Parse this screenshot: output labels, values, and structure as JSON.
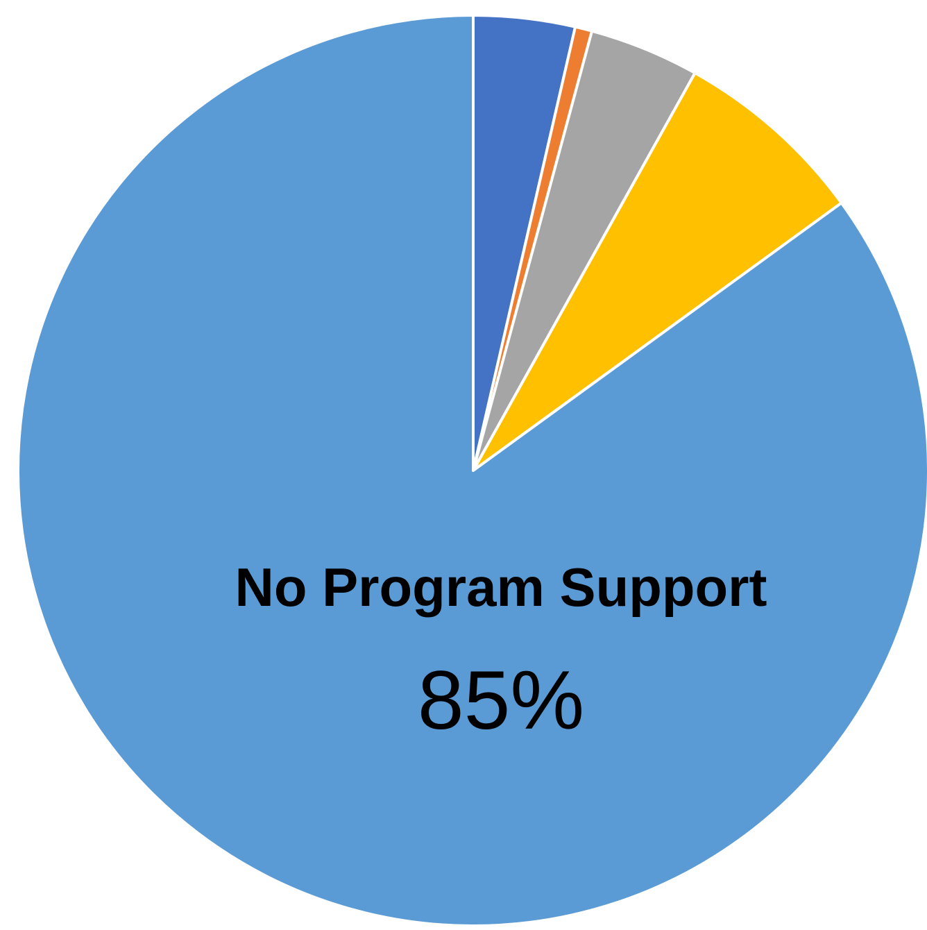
{
  "chart_data": {
    "type": "pie",
    "categories": [
      null,
      null,
      null,
      null,
      "No Program Support"
    ],
    "values": [
      3.6,
      0.6,
      3.9,
      6.9,
      85
    ],
    "value_labels": [
      null,
      null,
      null,
      null,
      "85%"
    ],
    "colors": [
      "#4472c4",
      "#ed7d31",
      "#a5a5a5",
      "#ffc000",
      "#5b9bd5"
    ]
  }
}
